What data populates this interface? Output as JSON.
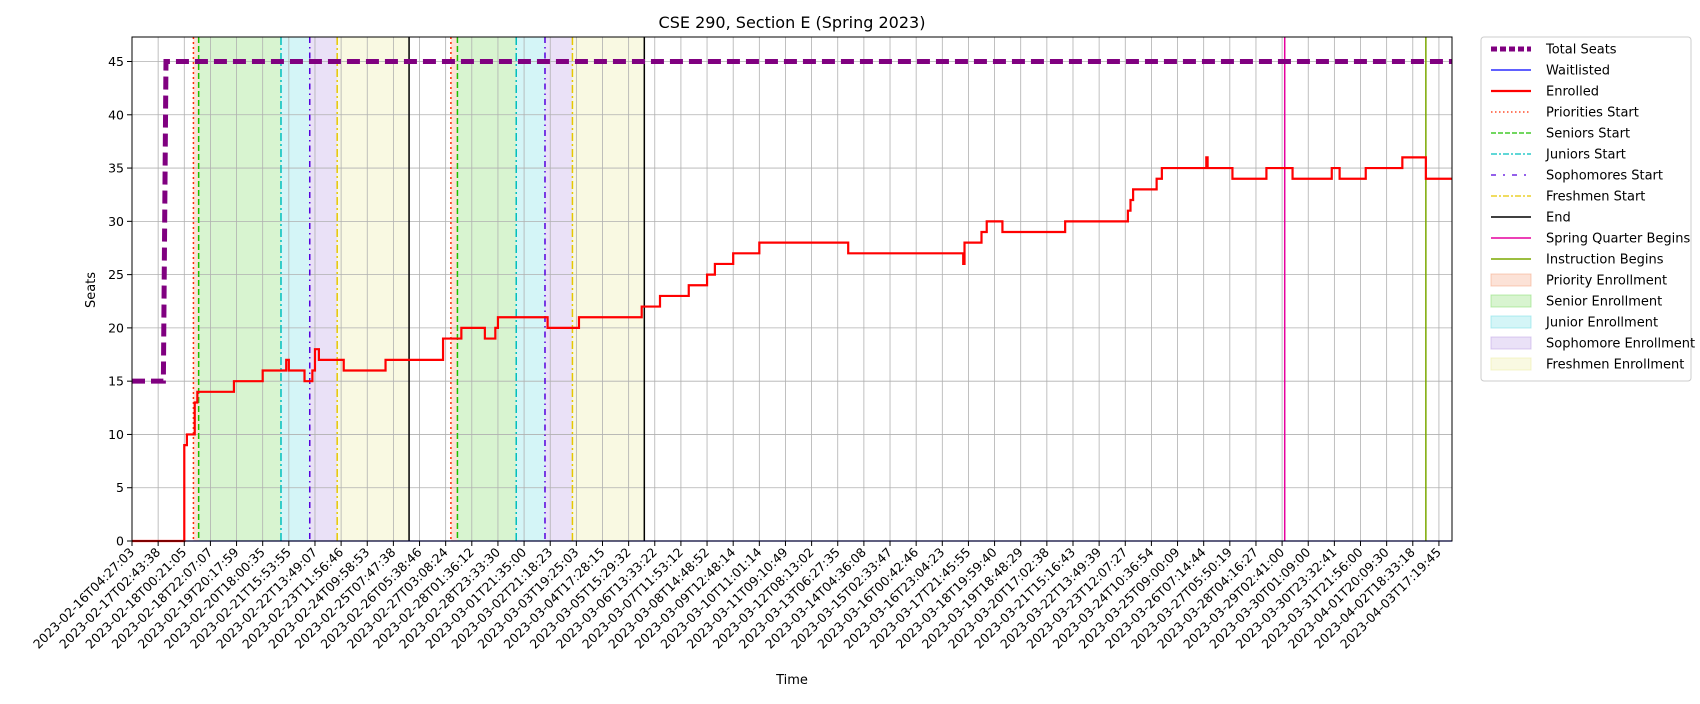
{
  "chart_data": {
    "type": "line",
    "title": "CSE 290, Section E (Spring 2023)",
    "xlabel": "Time",
    "ylabel": "Seats",
    "ylim": [
      0,
      47.3
    ],
    "yticks": [
      0,
      5,
      10,
      15,
      20,
      25,
      30,
      35,
      40,
      45
    ],
    "grid": true,
    "legend_position": "outside-upper-right",
    "xlim_index": [
      0,
      50.5
    ],
    "xtick_labels": [
      "2023-02-16T04:27:03",
      "2023-02-17T02:43:38",
      "2023-02-18T00:21:05",
      "2023-02-18T22:07:07",
      "2023-02-19T20:17:59",
      "2023-02-20T18:00:35",
      "2023-02-21T15:53:55",
      "2023-02-22T13:49:07",
      "2023-02-23T11:56:46",
      "2023-02-24T09:58:53",
      "2023-02-25T07:47:38",
      "2023-02-26T05:38:46",
      "2023-02-27T03:08:24",
      "2023-02-28T01:36:12",
      "2023-02-28T23:33:30",
      "2023-03-01T21:35:00",
      "2023-03-02T21:18:23",
      "2023-03-03T19:25:03",
      "2023-03-04T17:28:15",
      "2023-03-05T15:29:32",
      "2023-03-06T13:33:22",
      "2023-03-07T11:53:12",
      "2023-03-08T14:48:52",
      "2023-03-09T12:48:14",
      "2023-03-10T11:01:14",
      "2023-03-11T09:10:49",
      "2023-03-12T08:13:02",
      "2023-03-13T06:27:35",
      "2023-03-14T04:36:08",
      "2023-03-15T02:33:47",
      "2023-03-16T00:42:46",
      "2023-03-16T23:04:23",
      "2023-03-17T21:45:55",
      "2023-03-18T19:59:40",
      "2023-03-19T18:48:29",
      "2023-03-20T17:02:38",
      "2023-03-21T15:16:43",
      "2023-03-22T13:49:39",
      "2023-03-23T12:07:27",
      "2023-03-24T10:36:54",
      "2023-03-25T09:00:09",
      "2023-03-26T07:14:44",
      "2023-03-27T05:50:19",
      "2023-03-28T04:16:27",
      "2023-03-29T02:41:00",
      "2023-03-30T01:09:00",
      "2023-03-30T23:32:41",
      "2023-03-31T21:56:00",
      "2023-04-01T20:09:30",
      "2023-04-02T18:33:18",
      "2023-04-03T17:19:45"
    ],
    "shaded_regions": [
      {
        "name": "Priority Enrollment",
        "color": "#f4a07a",
        "from": 2.35,
        "to": 2.55
      },
      {
        "name": "Senior Enrollment",
        "color": "#7ddb63",
        "from": 2.55,
        "to": 5.7
      },
      {
        "name": "Junior Enrollment",
        "color": "#6fdde6",
        "from": 5.7,
        "to": 6.8
      },
      {
        "name": "Sophomore Enrollment",
        "color": "#b99be6",
        "from": 6.8,
        "to": 7.85
      },
      {
        "name": "Freshmen Enrollment",
        "color": "#ecec9e",
        "from": 7.85,
        "to": 10.6
      },
      {
        "name": "Priority Enrollment",
        "color": "#f4a07a",
        "from": 12.2,
        "to": 12.45
      },
      {
        "name": "Senior Enrollment",
        "color": "#7ddb63",
        "from": 12.45,
        "to": 14.7
      },
      {
        "name": "Junior Enrollment",
        "color": "#6fdde6",
        "from": 14.7,
        "to": 15.8
      },
      {
        "name": "Sophomore Enrollment",
        "color": "#b99be6",
        "from": 15.8,
        "to": 16.85
      },
      {
        "name": "Freshmen Enrollment",
        "color": "#ecec9e",
        "from": 16.85,
        "to": 19.6
      }
    ],
    "vertical_lines": [
      {
        "name": "Priorities Start",
        "color": "#ff2a00",
        "dash": "2,3",
        "at": [
          2.35,
          12.2
        ]
      },
      {
        "name": "Seniors Start",
        "color": "#1fbf00",
        "dash": "6,3",
        "at": [
          2.55,
          12.45
        ]
      },
      {
        "name": "Juniors Start",
        "color": "#00bfbf",
        "dash": "8,3,2,3",
        "at": [
          5.7,
          14.7
        ]
      },
      {
        "name": "Sophomores Start",
        "color": "#5500dd",
        "dash": "6,4,1.5,4",
        "at": [
          6.8,
          15.8
        ]
      },
      {
        "name": "Freshmen Start",
        "color": "#e6c800",
        "dash": "8,3,2,3",
        "at": [
          7.85,
          16.85
        ]
      },
      {
        "name": "End",
        "color": "#000000",
        "dash": "",
        "at": [
          10.6,
          19.6
        ]
      },
      {
        "name": "Spring Quarter Begins",
        "color": "#e6009e",
        "dash": "",
        "at": [
          44.1
        ]
      },
      {
        "name": "Instruction Begins",
        "color": "#7ba800",
        "dash": "",
        "at": [
          49.5
        ]
      }
    ],
    "series": [
      {
        "name": "Total Seats",
        "color": "#800080",
        "style": "thick-dashed",
        "points": [
          [
            0,
            15
          ],
          [
            1.2,
            15
          ],
          [
            1.3,
            45
          ],
          [
            50.5,
            45
          ]
        ]
      },
      {
        "name": "Waitlisted",
        "color": "#0000ff",
        "style": "thin",
        "points": [
          [
            0,
            0
          ],
          [
            50.5,
            0
          ]
        ]
      },
      {
        "name": "Enrolled",
        "color": "#ff0000",
        "style": "step",
        "points": [
          [
            0,
            0
          ],
          [
            2.0,
            0
          ],
          [
            2.0,
            9
          ],
          [
            2.1,
            9
          ],
          [
            2.1,
            10
          ],
          [
            2.4,
            10
          ],
          [
            2.4,
            13
          ],
          [
            2.5,
            13
          ],
          [
            2.5,
            14
          ],
          [
            3.9,
            14
          ],
          [
            3.9,
            15
          ],
          [
            5.0,
            15
          ],
          [
            5.0,
            16
          ],
          [
            5.9,
            16
          ],
          [
            5.9,
            17
          ],
          [
            6.0,
            17
          ],
          [
            6.0,
            16
          ],
          [
            6.6,
            16
          ],
          [
            6.6,
            15
          ],
          [
            6.9,
            15
          ],
          [
            6.9,
            16
          ],
          [
            7.0,
            16
          ],
          [
            7.0,
            18
          ],
          [
            7.15,
            18
          ],
          [
            7.15,
            17
          ],
          [
            8.1,
            17
          ],
          [
            8.1,
            16
          ],
          [
            9.7,
            16
          ],
          [
            9.7,
            17
          ],
          [
            11.9,
            17
          ],
          [
            11.9,
            19
          ],
          [
            12.6,
            19
          ],
          [
            12.6,
            20
          ],
          [
            13.5,
            20
          ],
          [
            13.5,
            19
          ],
          [
            13.9,
            19
          ],
          [
            13.9,
            20
          ],
          [
            14.0,
            20
          ],
          [
            14.0,
            21
          ],
          [
            15.9,
            21
          ],
          [
            15.9,
            20
          ],
          [
            17.1,
            20
          ],
          [
            17.1,
            21
          ],
          [
            19.5,
            21
          ],
          [
            19.5,
            22
          ],
          [
            20.2,
            22
          ],
          [
            20.2,
            23
          ],
          [
            21.3,
            23
          ],
          [
            21.3,
            24
          ],
          [
            22.0,
            24
          ],
          [
            22.0,
            25
          ],
          [
            22.3,
            25
          ],
          [
            22.3,
            26
          ],
          [
            23.0,
            26
          ],
          [
            23.0,
            27
          ],
          [
            24.0,
            27
          ],
          [
            24.0,
            28
          ],
          [
            27.4,
            28
          ],
          [
            27.4,
            27
          ],
          [
            31.8,
            27
          ],
          [
            31.8,
            26
          ],
          [
            31.85,
            26
          ],
          [
            31.85,
            28
          ],
          [
            32.5,
            28
          ],
          [
            32.5,
            29
          ],
          [
            32.7,
            29
          ],
          [
            32.7,
            30
          ],
          [
            33.3,
            30
          ],
          [
            33.3,
            29
          ],
          [
            35.7,
            29
          ],
          [
            35.7,
            30
          ],
          [
            38.1,
            30
          ],
          [
            38.1,
            31
          ],
          [
            38.2,
            31
          ],
          [
            38.2,
            32
          ],
          [
            38.3,
            32
          ],
          [
            38.3,
            33
          ],
          [
            39.2,
            33
          ],
          [
            39.2,
            34
          ],
          [
            39.4,
            34
          ],
          [
            39.4,
            35
          ],
          [
            41.1,
            35
          ],
          [
            41.1,
            36
          ],
          [
            41.15,
            36
          ],
          [
            41.15,
            35
          ],
          [
            42.1,
            35
          ],
          [
            42.1,
            34
          ],
          [
            43.4,
            34
          ],
          [
            43.4,
            35
          ],
          [
            44.4,
            35
          ],
          [
            44.4,
            34
          ],
          [
            45.9,
            34
          ],
          [
            45.9,
            35
          ],
          [
            46.2,
            35
          ],
          [
            46.2,
            34
          ],
          [
            47.2,
            34
          ],
          [
            47.2,
            35
          ],
          [
            48.6,
            35
          ],
          [
            48.6,
            36
          ],
          [
            49.5,
            36
          ],
          [
            49.5,
            34
          ],
          [
            50.5,
            34
          ]
        ]
      }
    ],
    "legend": [
      {
        "label": "Total Seats",
        "kind": "line",
        "color": "#800080",
        "width": 5,
        "dash": "6,3"
      },
      {
        "label": "Waitlisted",
        "kind": "line",
        "color": "#0000ff",
        "width": 1.2,
        "dash": ""
      },
      {
        "label": "Enrolled",
        "kind": "line",
        "color": "#ff0000",
        "width": 2.2,
        "dash": ""
      },
      {
        "label": "Priorities Start",
        "kind": "line",
        "color": "#ff2a00",
        "width": 1.3,
        "dash": "1.5,2.5"
      },
      {
        "label": "Seniors Start",
        "kind": "line",
        "color": "#1fbf00",
        "width": 1.3,
        "dash": "5,2"
      },
      {
        "label": "Juniors Start",
        "kind": "line",
        "color": "#00bfbf",
        "width": 1.3,
        "dash": "6,2,2,2"
      },
      {
        "label": "Sophomores Start",
        "kind": "line",
        "color": "#5500dd",
        "width": 1.3,
        "dash": "5,7,2,7"
      },
      {
        "label": "Freshmen Start",
        "kind": "line",
        "color": "#e6c800",
        "width": 1.3,
        "dash": "6,2,2,2"
      },
      {
        "label": "End",
        "kind": "line",
        "color": "#000000",
        "width": 1.5,
        "dash": ""
      },
      {
        "label": "Spring Quarter Begins",
        "kind": "line",
        "color": "#e6009e",
        "width": 1.5,
        "dash": ""
      },
      {
        "label": "Instruction Begins",
        "kind": "line",
        "color": "#7ba800",
        "width": 1.5,
        "dash": ""
      },
      {
        "label": "Priority Enrollment",
        "kind": "patch",
        "color": "#f4a07a",
        "width": 0,
        "dash": ""
      },
      {
        "label": "Senior Enrollment",
        "kind": "patch",
        "color": "#7ddb63",
        "width": 0,
        "dash": ""
      },
      {
        "label": "Junior Enrollment",
        "kind": "patch",
        "color": "#6fdde6",
        "width": 0,
        "dash": ""
      },
      {
        "label": "Sophomore Enrollment",
        "kind": "patch",
        "color": "#b99be6",
        "width": 0,
        "dash": ""
      },
      {
        "label": "Freshmen Enrollment",
        "kind": "patch",
        "color": "#ecec9e",
        "width": 0,
        "dash": ""
      }
    ]
  }
}
